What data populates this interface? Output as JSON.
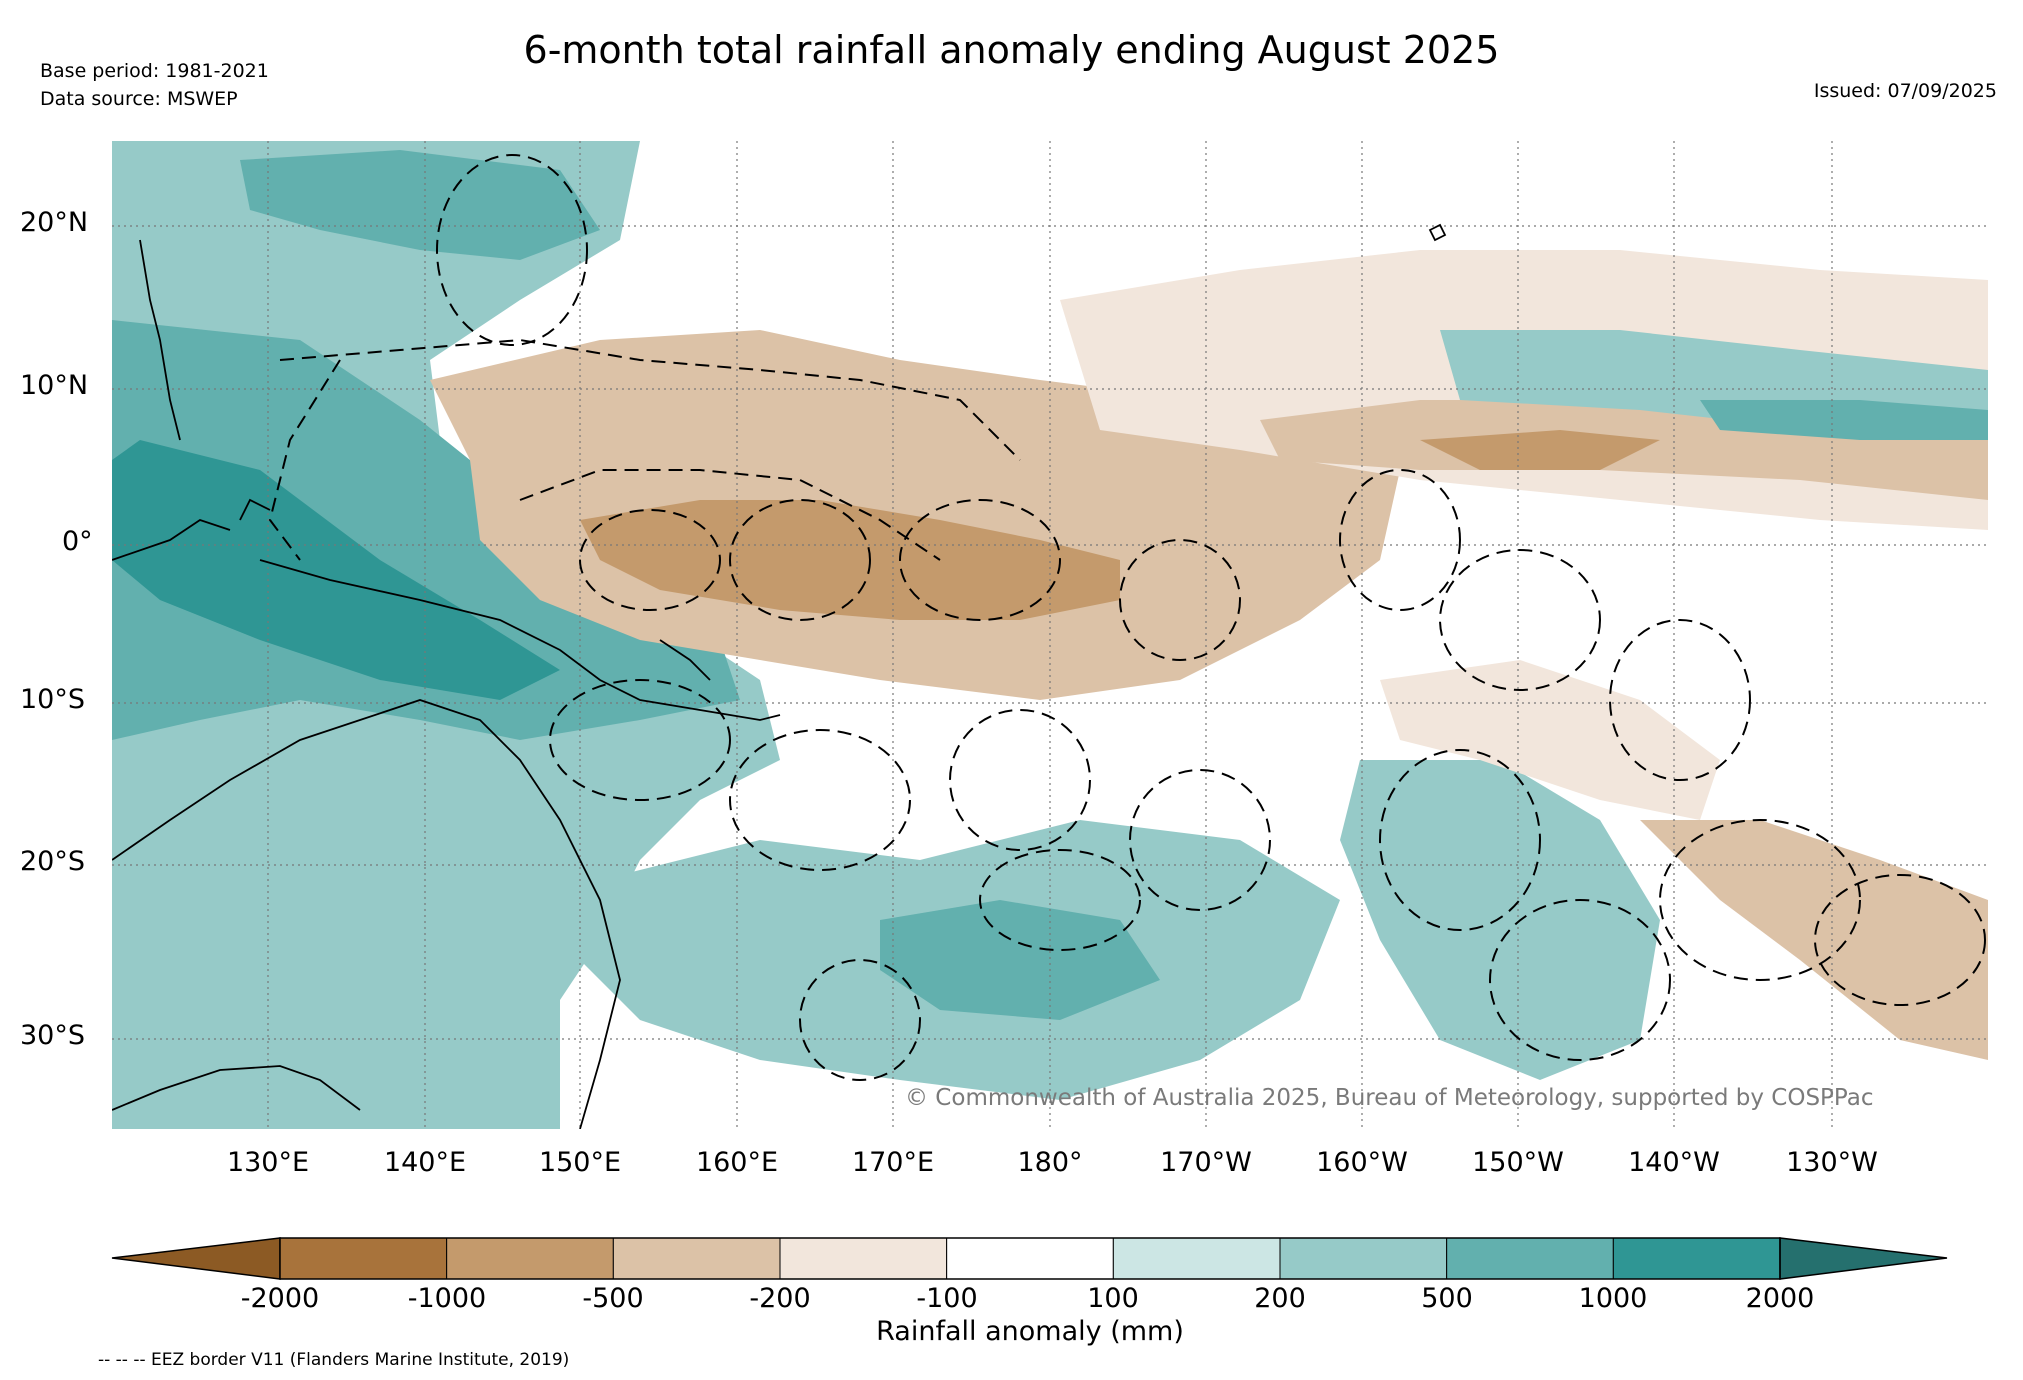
{
  "title": "6-month total rainfall anomaly ending August 2025",
  "base_period": "Base period: 1981-2021",
  "data_source": "Data source: MSWEP",
  "issued": "Issued: 07/09/2025",
  "copyright": "© Commonwealth of Australia 2025, Bureau of Meteorology, supported by COSPPac",
  "map": {
    "lat_labels": [
      "20°N",
      "10°N",
      "0°",
      "10°S",
      "20°S",
      "30°S"
    ],
    "lon_labels": [
      "130°E",
      "140°E",
      "150°E",
      "160°E",
      "170°E",
      "180°",
      "170°W",
      "160°W",
      "150°W",
      "140°W",
      "130°W"
    ]
  },
  "colorbar": {
    "label": "Rainfall anomaly (mm)",
    "ticks": [
      "-2000",
      "-1000",
      "-500",
      "-200",
      "-100",
      "100",
      "200",
      "500",
      "1000",
      "2000"
    ],
    "colors": [
      "#8c5a24",
      "#a8733b",
      "#c49a6c",
      "#dcc2a7",
      "#f2e6dc",
      "#ffffff",
      "#cce6e4",
      "#96cac8",
      "#62b0ae",
      "#2f9694",
      "#25706e"
    ]
  },
  "eez_note": "-- -- -- EEZ border V11 (Flanders Marine Institute, 2019)"
}
